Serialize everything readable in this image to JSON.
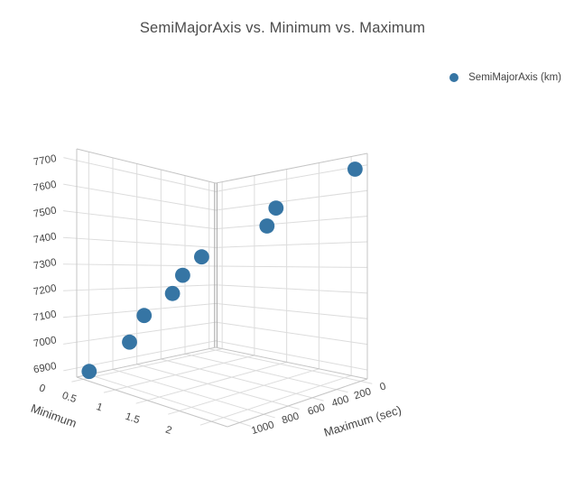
{
  "title": "SemiMajorAxis vs. Minimum vs. Maximum",
  "legend": {
    "label": "SemiMajorAxis (km)",
    "marker_color": "#3675a4"
  },
  "colors": {
    "marker": "#3675a4",
    "grid": "#dcdcdc",
    "edge": "#c4c4c4",
    "corner_axis": "#a6a6a6",
    "text": "#444444",
    "background": "#ffffff"
  },
  "chart_data": {
    "type": "scatter",
    "subtype": "scatter3d",
    "title": "SemiMajorAxis vs. Minimum vs. Maximum",
    "series_name": "SemiMajorAxis (km)",
    "grid": true,
    "legend_position": "top-right",
    "axes": {
      "x": {
        "label": "Minimum",
        "ticks": [
          0,
          0.5,
          1,
          1.5,
          2
        ],
        "range": [
          -0.1,
          2.25
        ]
      },
      "y": {
        "label": "Maximum (sec)",
        "ticks": [
          0,
          200,
          400,
          600,
          800,
          1000
        ],
        "range": [
          -55,
          1100
        ]
      },
      "z": {
        "label": "",
        "ticks": [
          6900,
          7000,
          7100,
          7200,
          7300,
          7400,
          7500,
          7600,
          7700
        ],
        "range": [
          6865,
          7745
        ]
      }
    },
    "points": [
      {
        "minimum": 0.0,
        "maximum": 1050,
        "semimajoraxis": 6890
      },
      {
        "minimum": 0.3,
        "maximum": 875,
        "semimajoraxis": 7010
      },
      {
        "minimum": 0.2,
        "maximum": 700,
        "semimajoraxis": 7100
      },
      {
        "minimum": 0.5,
        "maximum": 625,
        "semimajoraxis": 7200
      },
      {
        "minimum": 0.8,
        "maximum": 700,
        "semimajoraxis": 7285
      },
      {
        "minimum": 1.0,
        "maximum": 650,
        "semimajoraxis": 7360
      },
      {
        "minimum": 1.5,
        "maximum": 375,
        "semimajoraxis": 7480
      },
      {
        "minimum": 1.5,
        "maximum": 300,
        "semimajoraxis": 7550
      },
      {
        "minimum": 2.2,
        "maximum": 20,
        "semimajoraxis": 7685
      }
    ]
  }
}
